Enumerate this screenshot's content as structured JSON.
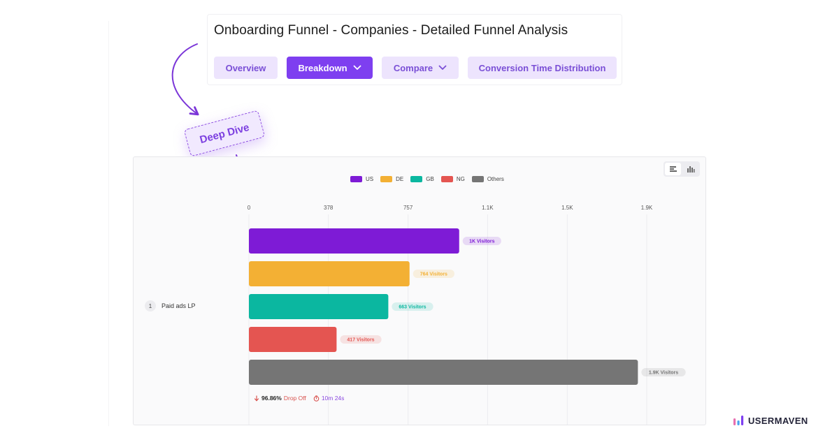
{
  "header": {
    "title": "Onboarding Funnel - Companies - Detailed Funnel Analysis",
    "tabs": [
      {
        "label": "Overview",
        "active": false,
        "dropdown": false
      },
      {
        "label": "Breakdown",
        "active": true,
        "dropdown": true
      },
      {
        "label": "Compare",
        "active": false,
        "dropdown": true
      },
      {
        "label": "Conversion Time Distribution",
        "active": false,
        "dropdown": false
      }
    ]
  },
  "annotation": {
    "label": "Deep Dive"
  },
  "chart_data": {
    "type": "bar",
    "orientation": "horizontal",
    "step": {
      "number": "1",
      "label": "Paid ads LP"
    },
    "series": [
      {
        "name": "US",
        "value": 1000,
        "label": "1K Visitors",
        "color": "#7e1bd6"
      },
      {
        "name": "DE",
        "value": 764,
        "label": "764 Visitors",
        "color": "#f3b034"
      },
      {
        "name": "GB",
        "value": 663,
        "label": "663 Visitors",
        "color": "#0bb7a0"
      },
      {
        "name": "NG",
        "value": 417,
        "label": "417 Visitors",
        "color": "#e45551"
      },
      {
        "name": "Others",
        "value": 1850,
        "label": "1.9K Visitors",
        "color": "#757575"
      }
    ],
    "x_ticks": [
      "0",
      "378",
      "757",
      "1.1K",
      "1.5K",
      "1.9K"
    ],
    "x_tick_values": [
      0,
      378,
      757,
      1135,
      1514,
      1892
    ],
    "xlim": [
      0,
      1892
    ],
    "legend_position": "top-center",
    "grid": true
  },
  "footer": {
    "drop_off_pct": "96.86%",
    "drop_off_label": "Drop Off",
    "time": "10m 24s"
  },
  "brand": {
    "name": "USERMAVEN"
  },
  "colors": {
    "accent": "#7e3ff0",
    "tab_light_bg": "#ede4fd",
    "tab_light_text": "#7a4fd6"
  }
}
